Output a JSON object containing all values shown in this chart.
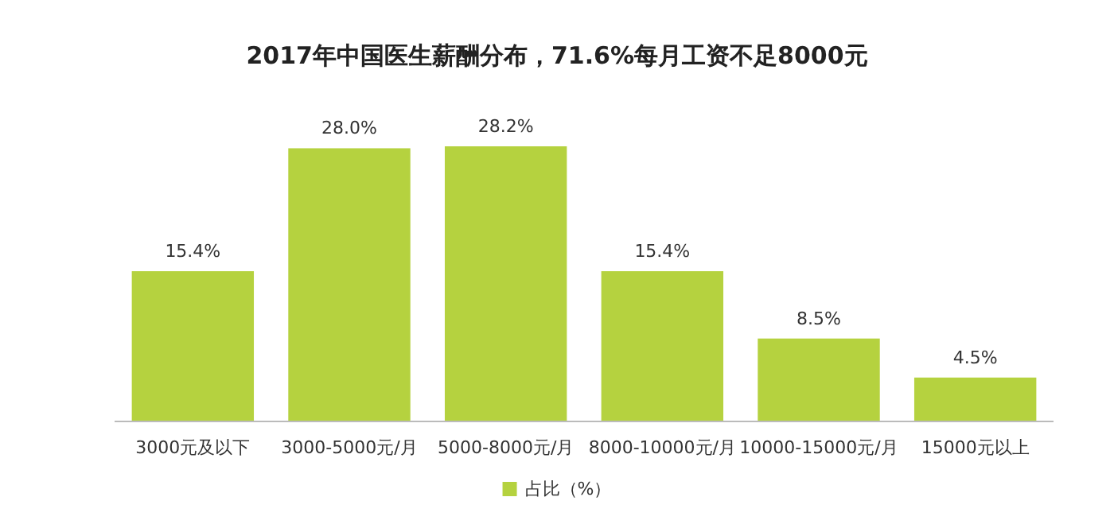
{
  "chart_data": {
    "type": "bar",
    "title": "2017年中国医生薪酬分布，71.6%每月工资不足8000元",
    "categories": [
      "3000元及以下",
      "3000-5000元/月",
      "5000-8000元/月",
      "8000-10000元/月",
      "10000-15000元/月",
      "15000元以上"
    ],
    "series": [
      {
        "name": "占比（%）",
        "color": "#b5d23f",
        "values": [
          15.4,
          28.0,
          28.2,
          15.4,
          8.5,
          4.5
        ],
        "value_labels": [
          "15.4%",
          "28.0%",
          "28.2%",
          "15.4%",
          "8.5%",
          "4.5%"
        ]
      }
    ],
    "legend": "bottom"
  }
}
